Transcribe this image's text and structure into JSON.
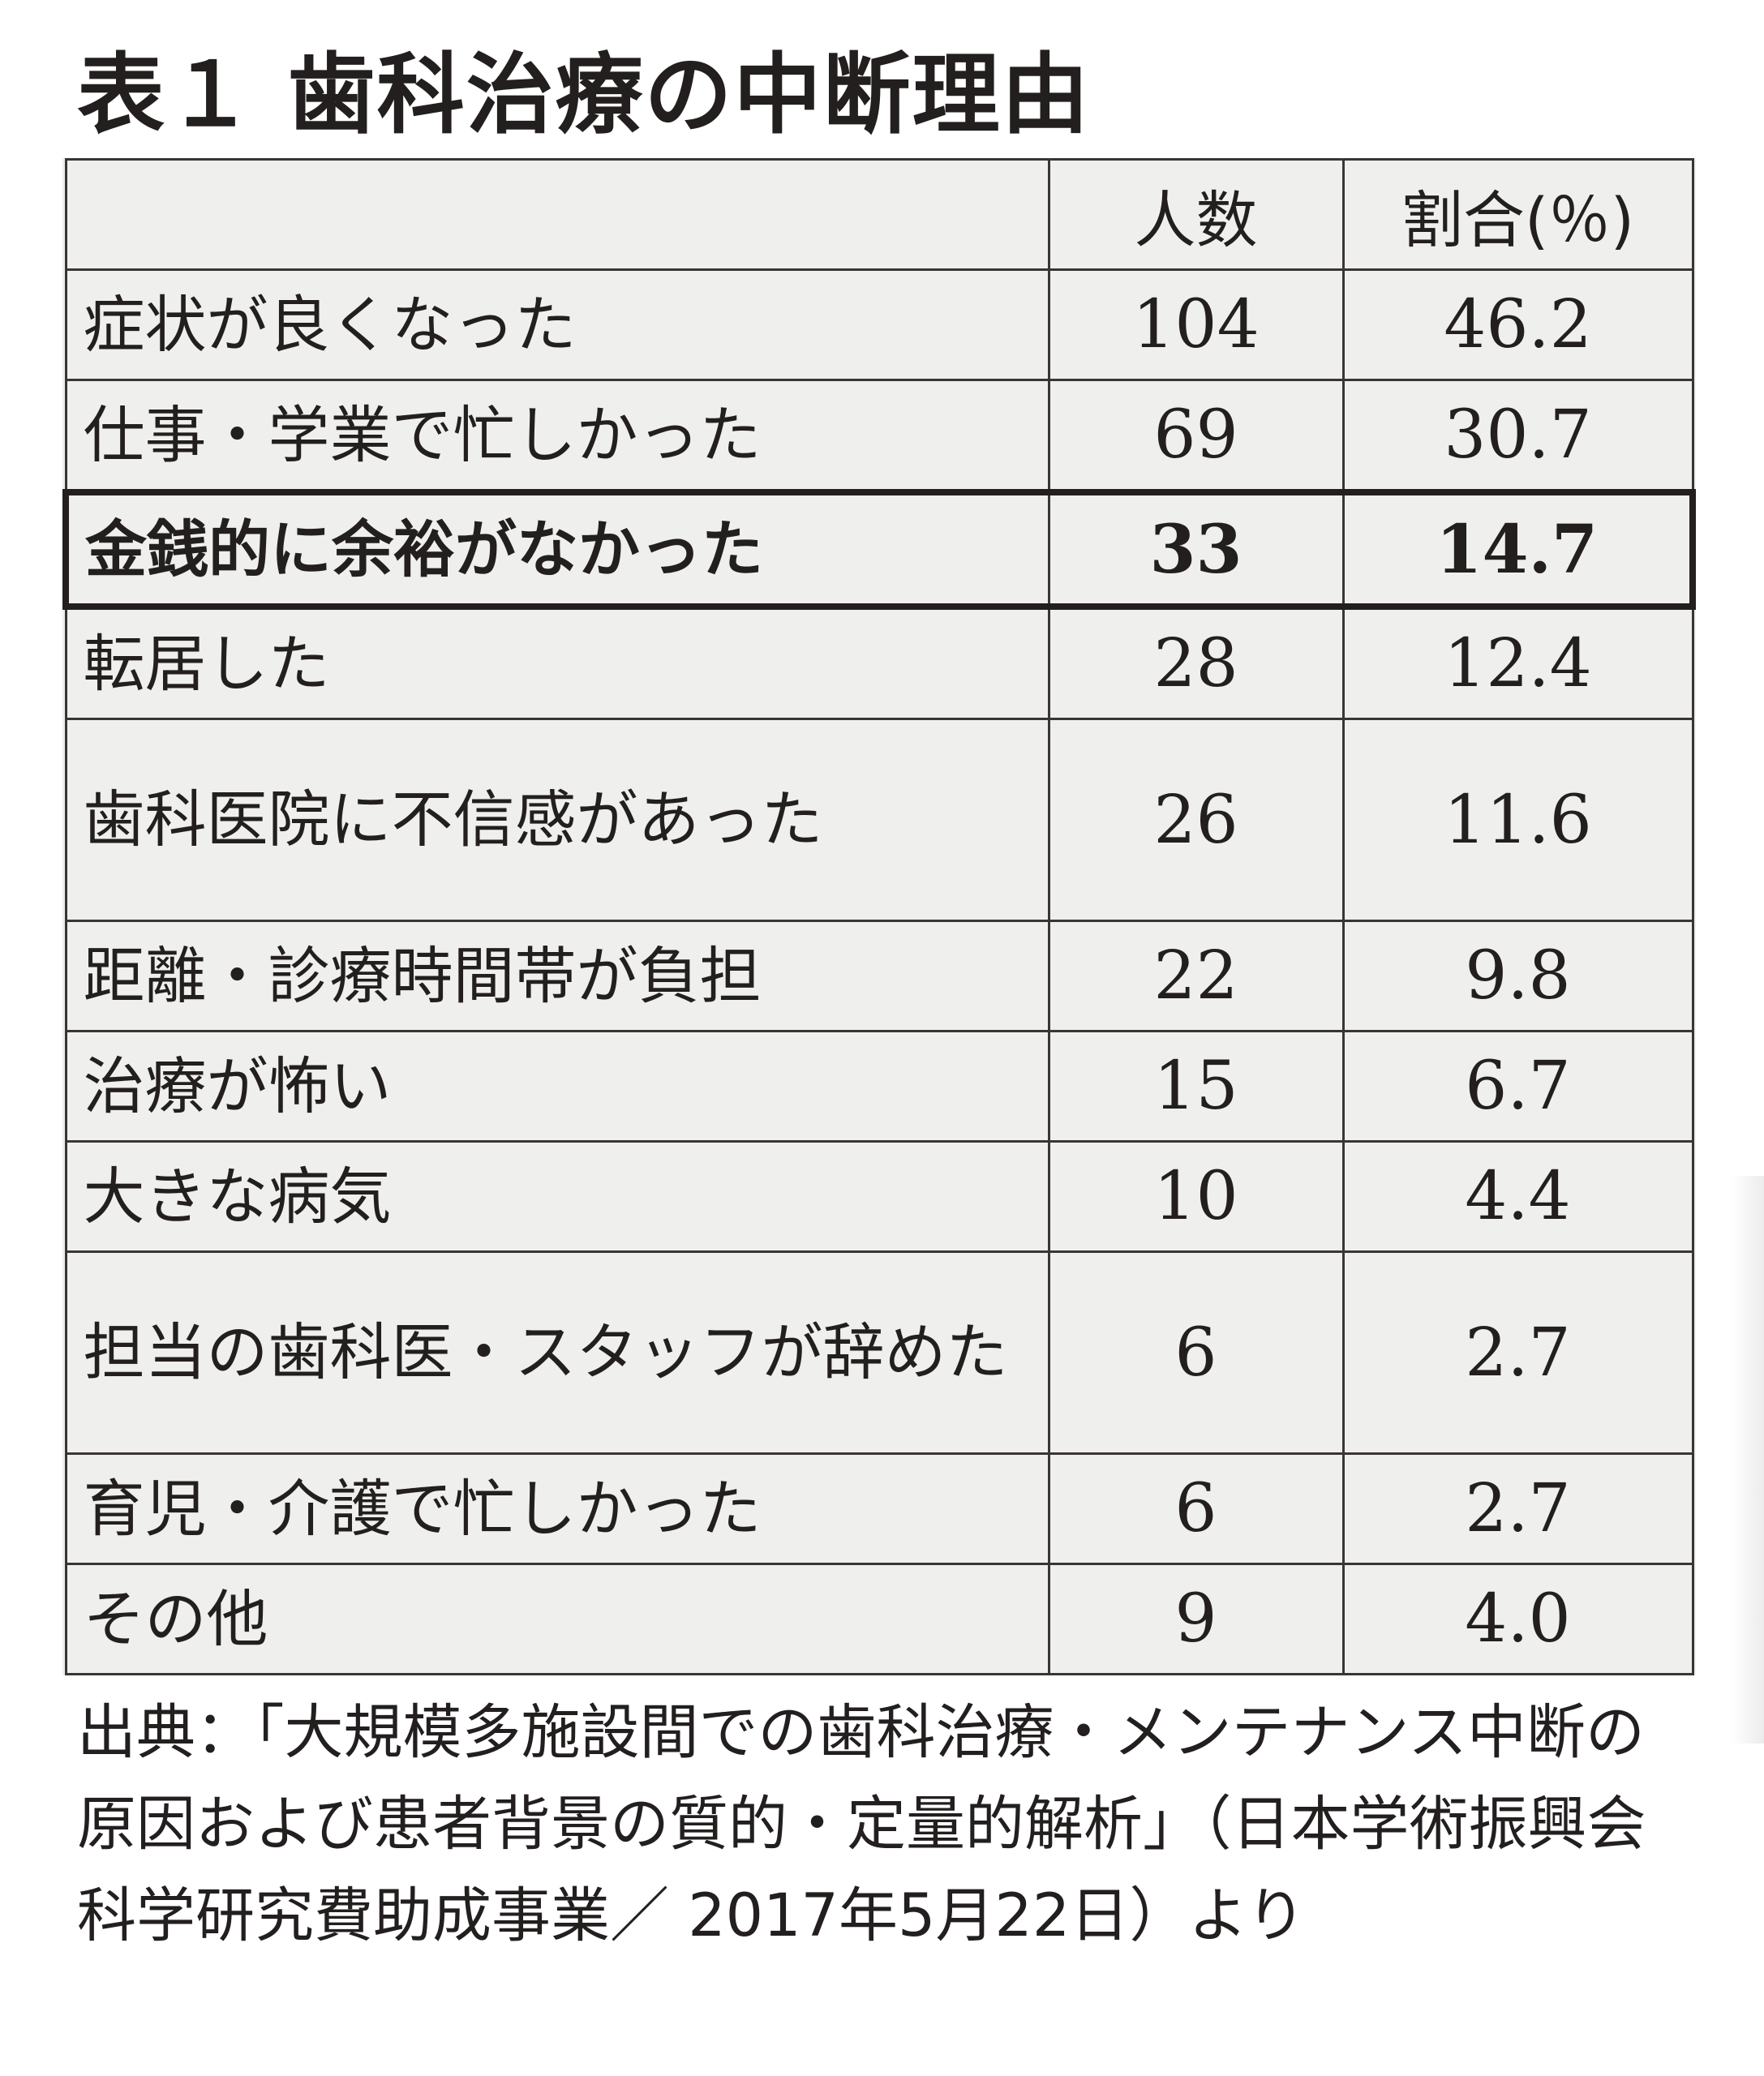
{
  "title": "表１ 歯科治療の中断理由",
  "table": {
    "headers": [
      "",
      "人数",
      "割合(％)"
    ],
    "rows": [
      {
        "reason": "症状が良くなった",
        "count": "104",
        "percent": "46.2"
      },
      {
        "reason": "仕事・学業で忙しかった",
        "count": "69",
        "percent": "30.7"
      },
      {
        "reason": "金銭的に余裕がなかった",
        "count": "33",
        "percent": "14.7",
        "highlight": true
      },
      {
        "reason": "転居した",
        "count": "28",
        "percent": "12.4"
      },
      {
        "reason": "歯科医院に不信感があった",
        "count": "26",
        "percent": "11.6"
      },
      {
        "reason": "距離・診療時間帯が負担",
        "count": "22",
        "percent": "9.8"
      },
      {
        "reason": "治療が怖い",
        "count": "15",
        "percent": "6.7"
      },
      {
        "reason": "大きな病気",
        "count": "10",
        "percent": "4.4"
      },
      {
        "reason": "担当の歯科医・スタッフが辞めた",
        "count": "6",
        "percent": "2.7"
      },
      {
        "reason": "育児・介護で忙しかった",
        "count": "6",
        "percent": "2.7"
      },
      {
        "reason": "その他",
        "count": "9",
        "percent": "4.0"
      }
    ]
  },
  "source": "出典：「大規模多施設間での歯科治療・メンテナンス中断の原因および患者背景の質的・定量的解析」（日本学術振興会科学研究費助成事業／ 2017年5月22日）より"
}
